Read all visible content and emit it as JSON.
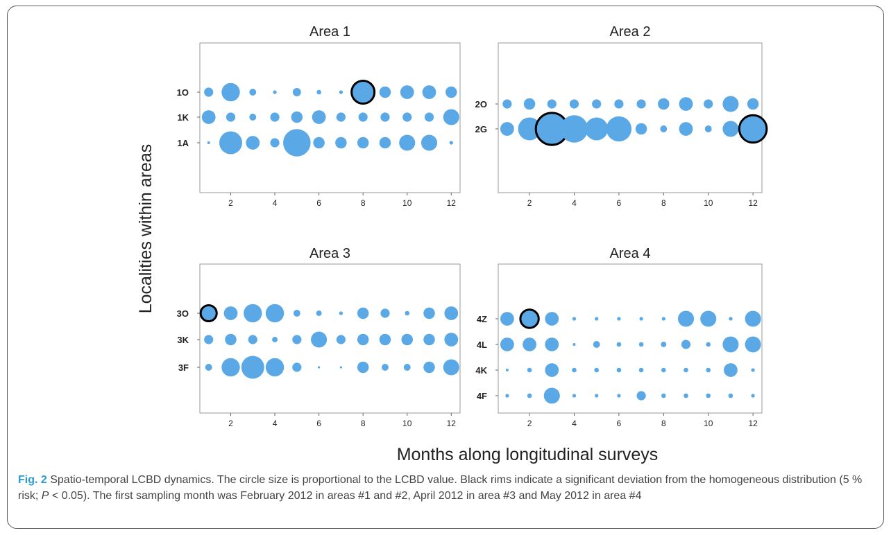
{
  "chart_data": {
    "type": "scatter",
    "description_kind": "bubble grid",
    "shared_ylabel": "Localities within areas",
    "shared_xlabel": "Months along longitudinal surveys",
    "x_ticks": [
      2,
      4,
      6,
      8,
      10,
      12
    ],
    "xlim": [
      0.6,
      12.4
    ],
    "colors": {
      "bubble": "#5aa8e6",
      "significant_rim": "#000000"
    },
    "panels": [
      {
        "title": "Area 1",
        "rows": [
          {
            "label": "1O",
            "sizes": [
              2,
              4,
              1.5,
              0.8,
              1.8,
              1,
              0.8,
              5,
              2.5,
              3,
              3,
              2.5
            ],
            "significant": [
              false,
              false,
              false,
              false,
              false,
              false,
              false,
              true,
              false,
              false,
              false,
              false
            ]
          },
          {
            "label": "1K",
            "sizes": [
              3,
              2,
              1.5,
              2,
              2.5,
              3,
              2,
              2,
              2,
              2,
              2,
              3.5
            ],
            "significant": [
              false,
              false,
              false,
              false,
              false,
              false,
              false,
              false,
              false,
              false,
              false,
              false
            ]
          },
          {
            "label": "1A",
            "sizes": [
              0.6,
              5,
              3,
              2,
              6,
              2.5,
              2.5,
              2.5,
              2.5,
              3.5,
              3.5,
              0.8
            ],
            "significant": [
              false,
              false,
              false,
              false,
              false,
              false,
              false,
              false,
              false,
              false,
              false,
              false
            ]
          }
        ]
      },
      {
        "title": "Area 2",
        "rows": [
          {
            "label": "2O",
            "sizes": [
              2,
              2.5,
              2,
              2,
              2,
              2,
              2,
              2.5,
              3,
              2,
              3.5,
              2.5
            ],
            "significant": [
              false,
              false,
              false,
              false,
              false,
              false,
              false,
              false,
              false,
              false,
              false,
              false
            ]
          },
          {
            "label": "2G",
            "sizes": [
              3,
              5,
              7,
              6,
              5,
              5.5,
              2.5,
              1.5,
              3,
              1.5,
              3.5,
              6
            ],
            "significant": [
              false,
              false,
              true,
              false,
              false,
              false,
              false,
              false,
              false,
              false,
              false,
              true
            ]
          }
        ]
      },
      {
        "title": "Area 3",
        "rows": [
          {
            "label": "3O",
            "sizes": [
              3.5,
              3,
              4,
              4,
              1.5,
              1.2,
              0.8,
              2.5,
              2,
              1,
              2.5,
              3
            ],
            "significant": [
              true,
              false,
              false,
              false,
              false,
              false,
              false,
              false,
              false,
              false,
              false,
              false
            ]
          },
          {
            "label": "3K",
            "sizes": [
              2,
              2.5,
              2,
              1.2,
              2,
              3.5,
              2,
              2.5,
              2.5,
              2.5,
              2.5,
              3
            ],
            "significant": [
              false,
              false,
              false,
              false,
              false,
              false,
              false,
              false,
              false,
              false,
              false,
              false
            ]
          },
          {
            "label": "3F",
            "sizes": [
              1.5,
              4,
              5,
              4,
              2,
              0.5,
              0.4,
              2.5,
              1.5,
              1.5,
              2.5,
              3.5
            ],
            "significant": [
              false,
              false,
              false,
              false,
              false,
              false,
              false,
              false,
              false,
              false,
              false,
              false
            ]
          }
        ]
      },
      {
        "title": "Area 4",
        "rows": [
          {
            "label": "4Z",
            "sizes": [
              3,
              4,
              3,
              0.8,
              0.8,
              0.8,
              0.8,
              0.8,
              3.5,
              3.5,
              0.8,
              3.5
            ],
            "significant": [
              false,
              true,
              false,
              false,
              false,
              false,
              false,
              false,
              false,
              false,
              false,
              false
            ]
          },
          {
            "label": "4L",
            "sizes": [
              3,
              3,
              3,
              0.6,
              1.5,
              1,
              1,
              1.2,
              2,
              1,
              3.5,
              3.5
            ],
            "significant": [
              false,
              false,
              false,
              false,
              false,
              false,
              false,
              false,
              false,
              false,
              false,
              false
            ]
          },
          {
            "label": "4K",
            "sizes": [
              0.6,
              1,
              3,
              1,
              1,
              1,
              1,
              1,
              1,
              1,
              3,
              0.8
            ],
            "significant": [
              false,
              false,
              false,
              false,
              false,
              false,
              false,
              false,
              false,
              false,
              false,
              false
            ]
          },
          {
            "label": "4F",
            "sizes": [
              0.8,
              1,
              3.5,
              0.8,
              0.8,
              0.8,
              2,
              1,
              1,
              1,
              1,
              0.8
            ],
            "significant": [
              false,
              false,
              false,
              false,
              false,
              false,
              false,
              false,
              false,
              false,
              false,
              false
            ]
          }
        ]
      }
    ]
  },
  "caption": {
    "fig_label": "Fig. 2",
    "text": " Spatio-temporal LCBD dynamics. The circle size is proportional to the LCBD value. Black rims indicate a significant deviation from the homogeneous distribution (5 % risk; ",
    "p_symbol": "P",
    "text_after": " < 0.05). The first sampling month was February 2012 in areas #1 and #2, April 2012 in area #3 and May 2012 in area #4"
  }
}
